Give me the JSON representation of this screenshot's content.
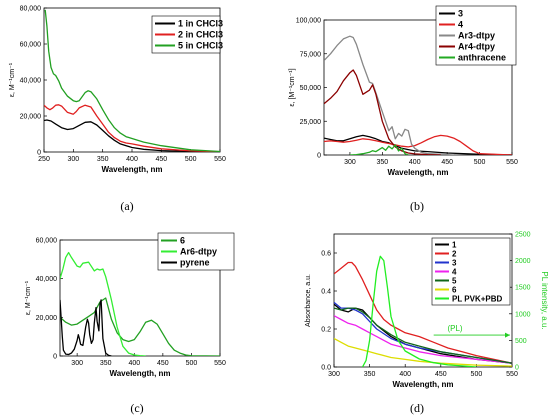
{
  "chart_data": [
    {
      "type": "line",
      "caption": "(a)",
      "xlabel": "Wavelength, nm",
      "ylabel": "ε, M⁻¹cm⁻¹",
      "xlim": [
        250,
        550
      ],
      "ylim": [
        0,
        80000
      ],
      "xticks": [
        "250",
        "300",
        "350",
        "400",
        "450",
        "500",
        "550"
      ],
      "yticks": [
        "0",
        "20,000",
        "40,000",
        "60,000",
        "80,000"
      ],
      "legend_position": "top-right",
      "series": [
        {
          "name": "1 in CHCl3",
          "color": "#000000",
          "x": [
            250,
            255,
            262,
            270,
            280,
            290,
            300,
            310,
            320,
            330,
            340,
            350,
            360,
            370,
            380,
            400,
            420,
            450,
            500,
            550
          ],
          "y": [
            17500,
            17800,
            17200,
            15500,
            13500,
            12500,
            13000,
            14800,
            16500,
            16800,
            15000,
            12000,
            9000,
            6500,
            4500,
            2500,
            1500,
            800,
            300,
            100
          ]
        },
        {
          "name": "2 in CHCl3",
          "color": "#e02020",
          "x": [
            250,
            255,
            260,
            265,
            270,
            275,
            280,
            290,
            300,
            305,
            310,
            320,
            330,
            340,
            350,
            360,
            370,
            380,
            390,
            400,
            420,
            450,
            500,
            550
          ],
          "y": [
            26000,
            24500,
            23500,
            24500,
            26000,
            26200,
            25500,
            22000,
            21000,
            22500,
            24500,
            26000,
            25000,
            20000,
            15500,
            11000,
            8000,
            6000,
            5000,
            4500,
            3200,
            1800,
            600,
            150
          ]
        },
        {
          "name": "5 in CHCl3",
          "color": "#22a022",
          "x": [
            252,
            255,
            258,
            262,
            266,
            270,
            275,
            280,
            290,
            300,
            305,
            310,
            320,
            325,
            330,
            340,
            350,
            360,
            370,
            380,
            390,
            400,
            420,
            450,
            500,
            550
          ],
          "y": [
            79000,
            70000,
            56000,
            47000,
            43500,
            42500,
            39500,
            35500,
            31000,
            28500,
            28000,
            28500,
            33000,
            34000,
            33500,
            29500,
            23500,
            18000,
            13500,
            10500,
            8500,
            7500,
            5500,
            3500,
            1200,
            300
          ]
        }
      ]
    },
    {
      "type": "line",
      "caption": "(b)",
      "xlabel": "Wavelength, nm",
      "ylabel": "ε, [M⁻¹cm⁻¹]",
      "xlim": [
        260,
        550
      ],
      "ylim": [
        0,
        100000
      ],
      "xticks": [
        "300",
        "350",
        "400",
        "450",
        "500",
        "550"
      ],
      "yticks": [
        "0",
        "25,000",
        "50,000",
        "75,000",
        "100,000"
      ],
      "legend_position": "top-right",
      "series": [
        {
          "name": "3",
          "color": "#000000",
          "x": [
            260,
            270,
            280,
            290,
            300,
            310,
            320,
            330,
            340,
            350,
            360,
            370,
            380,
            390,
            400,
            420,
            450,
            500,
            550
          ],
          "y": [
            12500,
            11500,
            10500,
            10500,
            12000,
            13500,
            14500,
            13500,
            12000,
            10000,
            9000,
            7000,
            5000,
            4000,
            3000,
            2500,
            1500,
            500,
            100
          ]
        },
        {
          "name": "4",
          "color": "#e02020",
          "x": [
            260,
            270,
            280,
            290,
            300,
            310,
            320,
            330,
            340,
            350,
            360,
            370,
            380,
            390,
            400,
            410,
            420,
            430,
            440,
            450,
            460,
            470,
            480,
            490,
            500,
            550
          ],
          "y": [
            10000,
            10500,
            10000,
            9500,
            10000,
            11000,
            12000,
            11500,
            10500,
            9500,
            8500,
            7500,
            6500,
            6000,
            7000,
            9000,
            11500,
            13500,
            14500,
            14000,
            12500,
            10000,
            6500,
            3000,
            1000,
            0
          ]
        },
        {
          "name": "Ar3-dtpy",
          "color": "#888888",
          "x": [
            260,
            270,
            280,
            290,
            300,
            305,
            310,
            320,
            330,
            335,
            340,
            350,
            360,
            365,
            370,
            375,
            380,
            385,
            390,
            395,
            400,
            410,
            420,
            440,
            460
          ],
          "y": [
            70000,
            75000,
            81000,
            86000,
            88000,
            87000,
            82000,
            67000,
            54000,
            53000,
            46000,
            32000,
            18000,
            21000,
            12000,
            16000,
            14000,
            19000,
            18000,
            8000,
            5000,
            2000,
            1000,
            500,
            0
          ]
        },
        {
          "name": "Ar4-dtpy",
          "color": "#8b0000",
          "x": [
            260,
            270,
            280,
            290,
            300,
            305,
            310,
            320,
            330,
            335,
            340,
            345,
            350,
            360,
            370,
            380,
            390,
            400,
            420,
            440
          ],
          "y": [
            38000,
            42000,
            47000,
            55000,
            61000,
            63000,
            59000,
            45000,
            48000,
            52000,
            45000,
            35000,
            25000,
            12000,
            6000,
            3000,
            1500,
            800,
            300,
            0
          ]
        },
        {
          "name": "anthracene",
          "color": "#22aa22",
          "x": [
            300,
            310,
            320,
            330,
            335,
            340,
            345,
            350,
            355,
            360,
            365,
            370,
            375,
            380,
            385,
            390
          ],
          "y": [
            0,
            300,
            1000,
            2000,
            3200,
            2500,
            4000,
            5500,
            3500,
            6500,
            4500,
            7500,
            3000,
            5000,
            1000,
            0
          ]
        }
      ]
    },
    {
      "type": "line",
      "caption": "(c)",
      "xlabel": "Wavelength, nm",
      "ylabel": "ε, M⁻¹cm⁻¹",
      "xlim": [
        270,
        550
      ],
      "ylim": [
        0,
        60000
      ],
      "xticks": [
        "300",
        "350",
        "400",
        "450",
        "500",
        "550"
      ],
      "yticks": [
        "0",
        "20,000",
        "40,000",
        "60,000"
      ],
      "legend_position": "top-right",
      "series": [
        {
          "name": "6",
          "color": "#22a022",
          "x": [
            270,
            280,
            290,
            300,
            310,
            320,
            330,
            340,
            350,
            360,
            370,
            380,
            390,
            400,
            410,
            420,
            430,
            440,
            450,
            460,
            470,
            480,
            490,
            500,
            550
          ],
          "y": [
            20000,
            17500,
            16000,
            16500,
            18500,
            20500,
            22500,
            28000,
            30000,
            19000,
            12000,
            8500,
            7500,
            8500,
            12500,
            17500,
            18500,
            16500,
            11500,
            6500,
            3000,
            1500,
            500,
            100,
            0
          ]
        },
        {
          "name": "Ar6-dtpy",
          "color": "#33ee33",
          "x": [
            270,
            275,
            280,
            285,
            290,
            300,
            305,
            310,
            320,
            330,
            335,
            340,
            345,
            350,
            355,
            360,
            370,
            380,
            390,
            400,
            410,
            420
          ],
          "y": [
            40000,
            45000,
            51000,
            53500,
            51000,
            46500,
            46000,
            48000,
            48500,
            44000,
            45000,
            44500,
            45000,
            41000,
            35000,
            29000,
            15000,
            5000,
            1500,
            500,
            200,
            0
          ]
        },
        {
          "name": "pyrene",
          "color": "#000000",
          "x": [
            270,
            272,
            274,
            276,
            280,
            285,
            290,
            295,
            300,
            302,
            304,
            306,
            310,
            315,
            318,
            320,
            322,
            325,
            328,
            330,
            333,
            335,
            338,
            340,
            342,
            345,
            350,
            355,
            360
          ],
          "y": [
            29000,
            20000,
            10000,
            3000,
            1000,
            800,
            1500,
            3500,
            8000,
            11000,
            9000,
            6000,
            5500,
            15000,
            19000,
            17000,
            11000,
            6500,
            8500,
            17000,
            25000,
            18000,
            13000,
            27000,
            29000,
            9000,
            1500,
            300,
            0
          ]
        }
      ]
    },
    {
      "type": "line",
      "caption": "(d)",
      "xlabel": "Wavelength, nm",
      "ylabel": "Absorbance, a.u.",
      "y2label": "PL intensity, a.u.",
      "xlim": [
        300,
        550
      ],
      "ylim": [
        0,
        0.7
      ],
      "y2lim": [
        0,
        2500
      ],
      "xticks": [
        "300",
        "350",
        "400",
        "450",
        "500",
        "550"
      ],
      "yticks": [
        "0.0",
        "0.2",
        "0.4",
        "0.6"
      ],
      "y2ticks": [
        "0",
        "500",
        "1000",
        "1500",
        "2000",
        "2500"
      ],
      "legend_position": "top-right",
      "annotation": "(PL)",
      "series": [
        {
          "name": "1",
          "color": "#000000",
          "x": [
            300,
            310,
            320,
            330,
            340,
            350,
            360,
            380,
            400,
            420,
            450,
            500,
            550
          ],
          "y": [
            0.33,
            0.3,
            0.29,
            0.31,
            0.3,
            0.26,
            0.22,
            0.16,
            0.12,
            0.1,
            0.07,
            0.04,
            0.02
          ]
        },
        {
          "name": "2",
          "color": "#e02020",
          "x": [
            300,
            310,
            320,
            325,
            330,
            340,
            350,
            360,
            370,
            380,
            390,
            400,
            420,
            440,
            460,
            480,
            500,
            550
          ],
          "y": [
            0.49,
            0.52,
            0.55,
            0.55,
            0.53,
            0.46,
            0.38,
            0.3,
            0.25,
            0.22,
            0.2,
            0.18,
            0.16,
            0.13,
            0.1,
            0.08,
            0.06,
            0.02
          ]
        },
        {
          "name": "3",
          "color": "#2233cc",
          "x": [
            300,
            310,
            320,
            330,
            340,
            350,
            360,
            380,
            400,
            420,
            450,
            500,
            550
          ],
          "y": [
            0.34,
            0.31,
            0.31,
            0.3,
            0.28,
            0.24,
            0.2,
            0.15,
            0.12,
            0.1,
            0.08,
            0.05,
            0.02
          ]
        },
        {
          "name": "4",
          "color": "#ee22ee",
          "x": [
            300,
            310,
            320,
            330,
            340,
            350,
            360,
            380,
            400,
            420,
            450,
            500,
            550
          ],
          "y": [
            0.27,
            0.25,
            0.23,
            0.22,
            0.2,
            0.18,
            0.16,
            0.12,
            0.1,
            0.08,
            0.06,
            0.04,
            0.02
          ]
        },
        {
          "name": "5",
          "color": "#11661a",
          "x": [
            300,
            310,
            320,
            330,
            340,
            350,
            360,
            380,
            400,
            420,
            450,
            500,
            550
          ],
          "y": [
            0.31,
            0.3,
            0.31,
            0.31,
            0.29,
            0.26,
            0.22,
            0.17,
            0.13,
            0.11,
            0.08,
            0.05,
            0.02
          ]
        },
        {
          "name": "6",
          "color": "#dddd00",
          "x": [
            300,
            310,
            320,
            330,
            340,
            350,
            360,
            380,
            400,
            420,
            450,
            500,
            550
          ],
          "y": [
            0.15,
            0.13,
            0.11,
            0.1,
            0.09,
            0.08,
            0.07,
            0.05,
            0.04,
            0.03,
            0.02,
            0.01,
            0.005
          ]
        },
        {
          "name": "PL PVK+PBD",
          "color": "#22ee22",
          "axis": "y2",
          "x": [
            340,
            345,
            350,
            355,
            360,
            365,
            370,
            375,
            380,
            390,
            400,
            420,
            440,
            460,
            480,
            500
          ],
          "y": [
            0,
            120,
            500,
            1200,
            1800,
            2080,
            2000,
            1500,
            950,
            500,
            300,
            150,
            80,
            40,
            20,
            0
          ]
        }
      ]
    }
  ]
}
